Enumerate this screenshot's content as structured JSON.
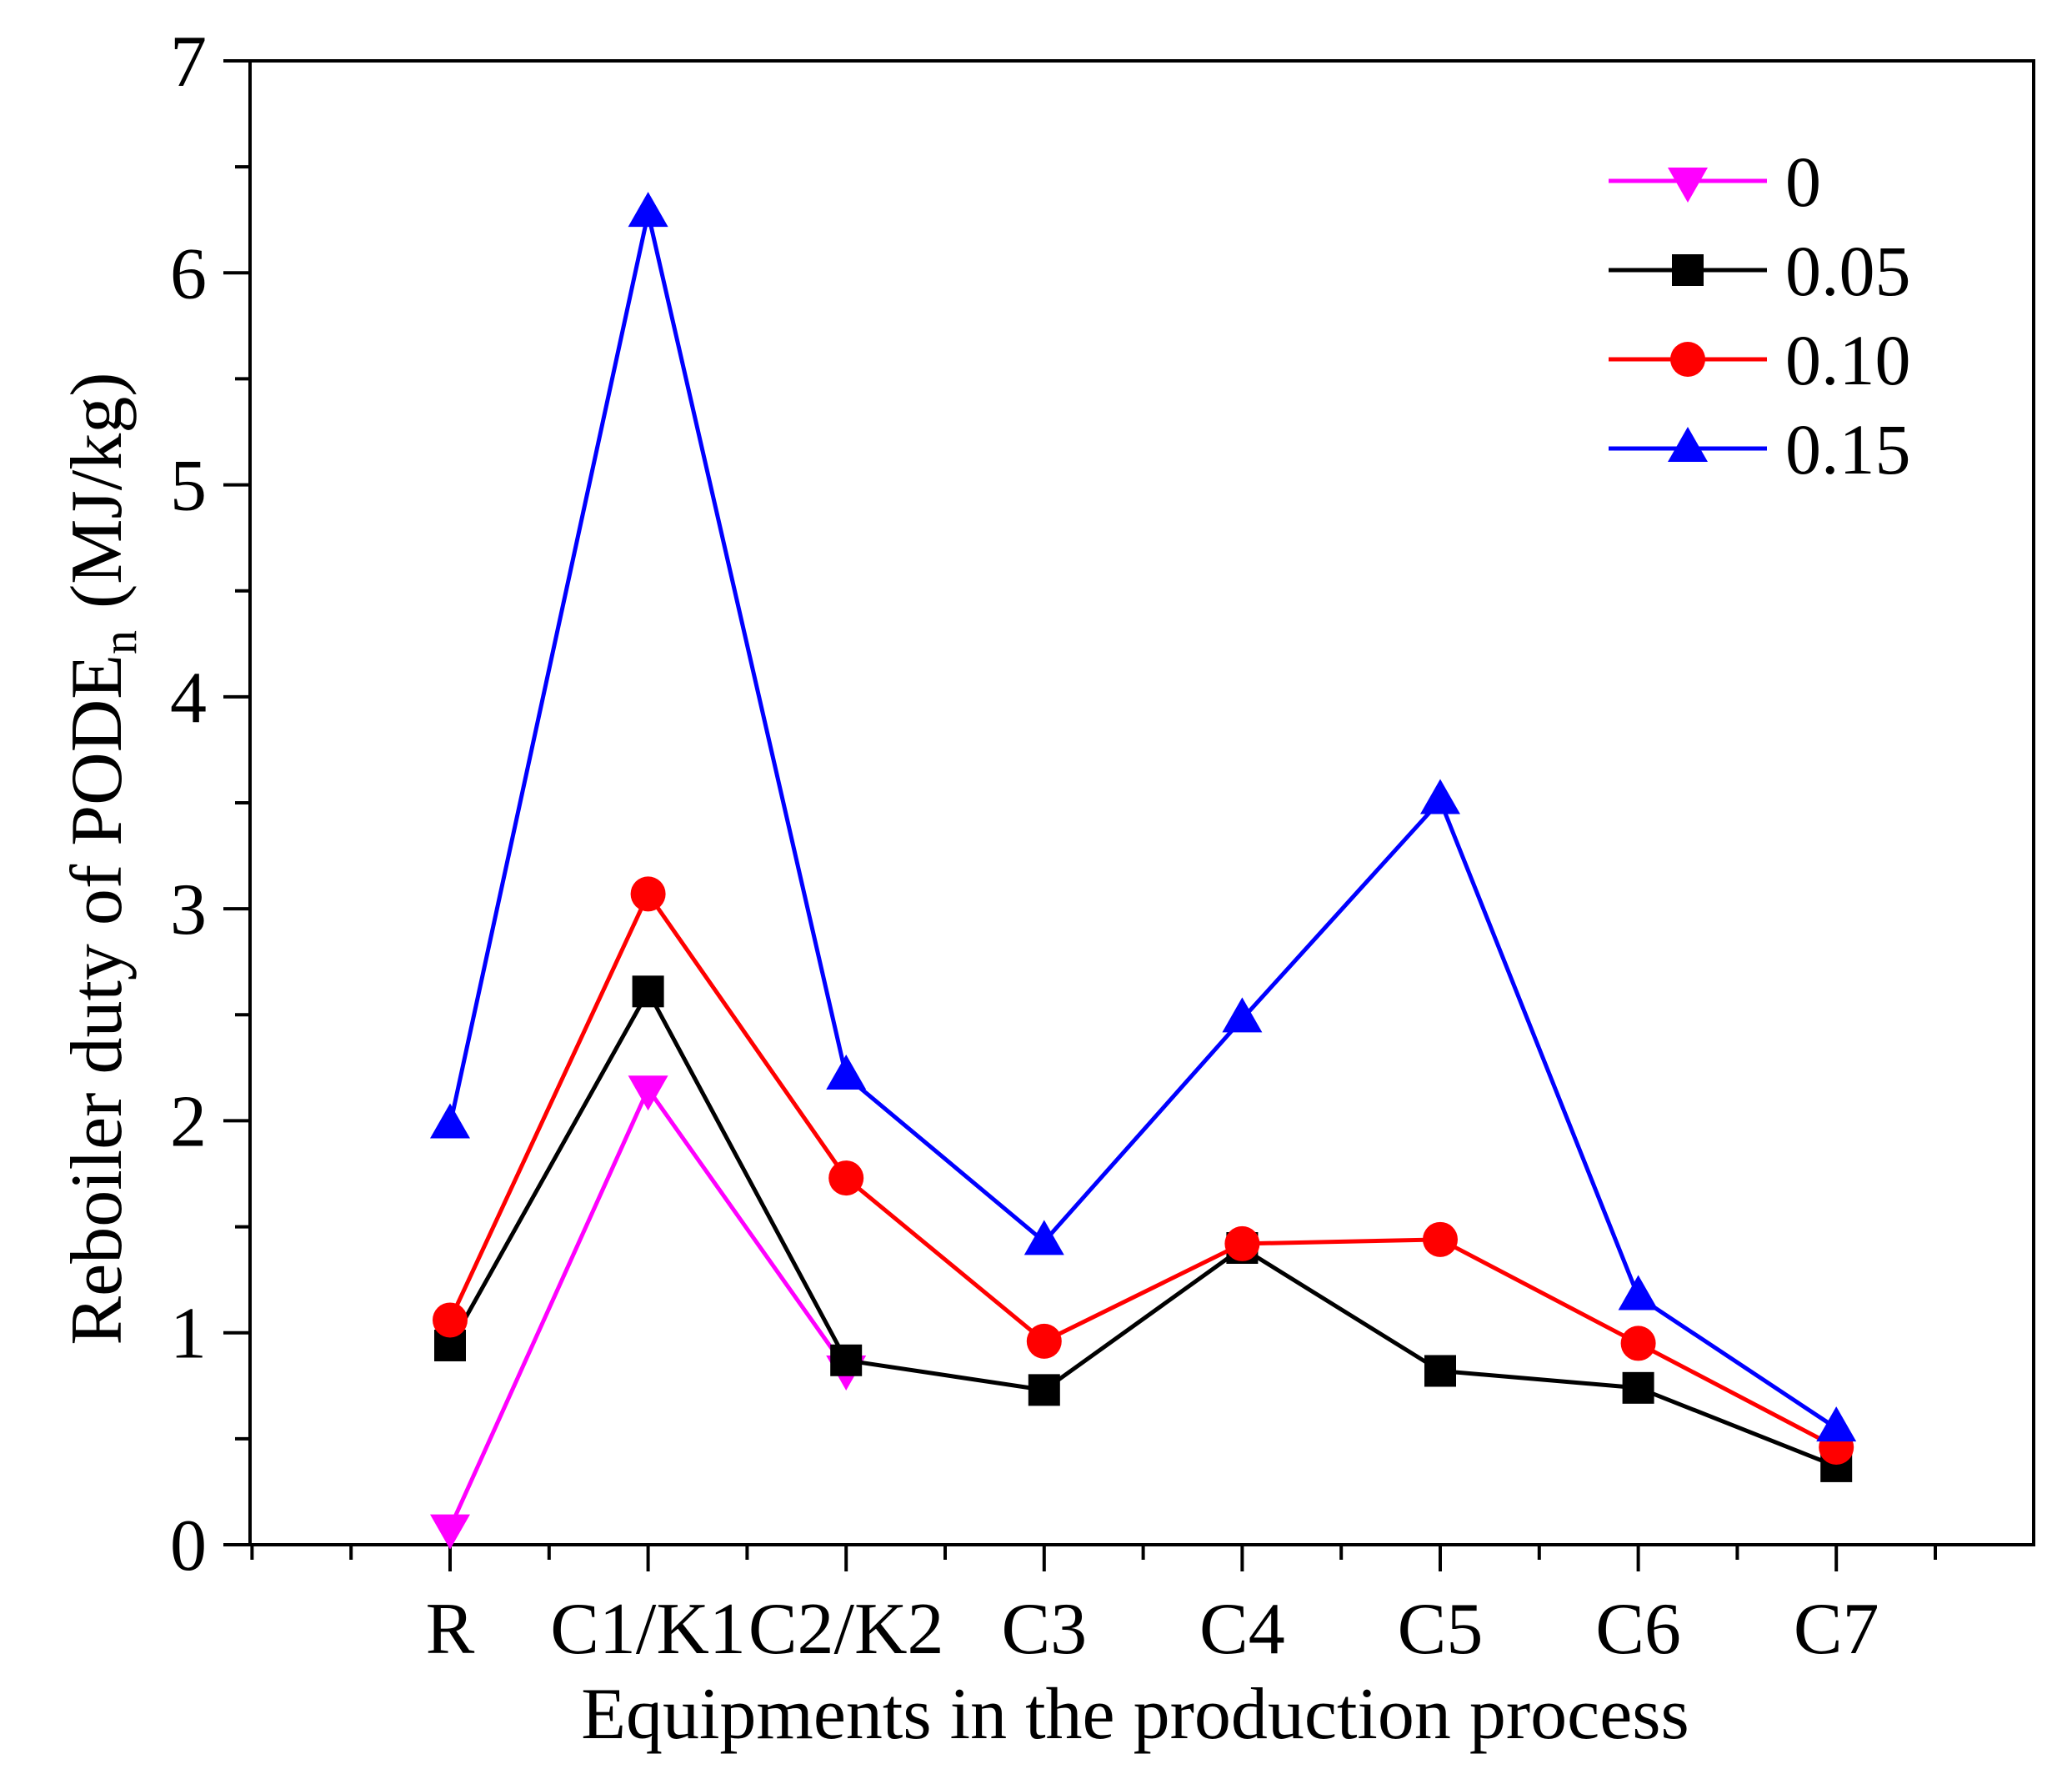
{
  "chart_data": {
    "type": "line",
    "title": "",
    "xlabel": "Equipments in the production process",
    "ylabel": "Reboiler duty of PODE",
    "ylabel_subscript": "n",
    "ylabel_units": "(MJ/kg)",
    "categories": [
      "R",
      "C1/K1",
      "C2/K2",
      "C3",
      "C4",
      "C5",
      "C6",
      "C7"
    ],
    "ylim": [
      0,
      7
    ],
    "yticks": [
      "0",
      "1",
      "2",
      "3",
      "4",
      "5",
      "6",
      "7"
    ],
    "grid": false,
    "legend_position": "top-right",
    "series": [
      {
        "name": "0",
        "color": "#ff00ff",
        "marker": "triangle-down",
        "values": [
          0.08,
          2.15,
          0.83,
          null,
          null,
          null,
          null,
          null
        ]
      },
      {
        "name": "0.05",
        "color": "#000000",
        "marker": "square",
        "values": [
          0.94,
          2.61,
          0.87,
          0.73,
          1.4,
          0.82,
          0.74,
          0.37
        ]
      },
      {
        "name": "0.10",
        "color": "#ff0000",
        "marker": "circle",
        "values": [
          1.06,
          3.07,
          1.73,
          0.96,
          1.42,
          1.44,
          0.95,
          0.46
        ]
      },
      {
        "name": "0.15",
        "color": "#0000ff",
        "marker": "triangle-up",
        "values": [
          1.98,
          6.28,
          2.21,
          1.43,
          2.48,
          3.51,
          1.17,
          0.55
        ]
      }
    ]
  }
}
